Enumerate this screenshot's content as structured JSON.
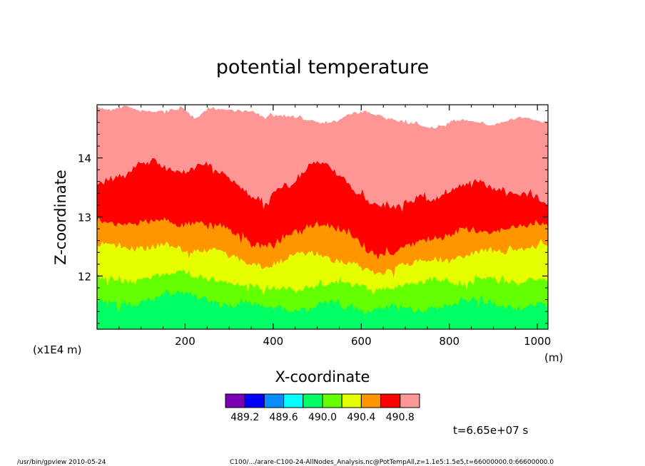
{
  "chart_data": {
    "type": "heatmap",
    "title": "potential temperature",
    "xlabel": "X-coordinate",
    "ylabel": "Z-coordinate",
    "x_unit": "(m)",
    "y_unit": "(x1E4 m)",
    "xlim": [
      0,
      1024
    ],
    "ylim": [
      11.1,
      14.9
    ],
    "x_ticks": [
      200,
      400,
      600,
      800,
      1000
    ],
    "y_ticks": [
      12,
      13,
      14
    ],
    "x_tick_labels": [
      "200",
      "400",
      "600",
      "800",
      "1000"
    ],
    "y_tick_labels": [
      "12",
      "13",
      "14"
    ],
    "grid": false,
    "contour_levels": [
      489.0,
      489.2,
      489.4,
      489.6,
      489.8,
      490.0,
      490.2,
      490.4,
      490.6,
      490.8,
      491.0
    ],
    "legend_labels": [
      "489.2",
      "489.6",
      "490.0",
      "490.4",
      "490.8"
    ],
    "colorbar_colors": [
      "#7a00b4",
      "#0000ff",
      "#0a8cff",
      "#00ffff",
      "#00ff64",
      "#64ff00",
      "#e6ff00",
      "#ff9600",
      "#ff0000",
      "#ff9696"
    ],
    "above_range_color": "#ffffff",
    "bands": [
      {
        "level": "490.8",
        "color": "#ff9696",
        "top_z": [
          14.85,
          14.82,
          14.88,
          14.8,
          14.78,
          14.8,
          14.85,
          14.65,
          14.85,
          14.82,
          14.8,
          14.78,
          14.7,
          14.72,
          14.68,
          14.65,
          14.6,
          14.62,
          14.75,
          14.78,
          14.72,
          14.65,
          14.6,
          14.55,
          14.5,
          14.6,
          14.65,
          14.62,
          14.55,
          14.62,
          14.68,
          14.65,
          14.6
        ]
      },
      {
        "level": "490.6",
        "color": "#ff0000",
        "top_z": [
          13.55,
          13.65,
          13.7,
          13.9,
          13.95,
          13.8,
          13.75,
          13.85,
          13.9,
          13.7,
          13.55,
          13.35,
          13.25,
          13.5,
          13.55,
          13.85,
          13.95,
          13.75,
          13.5,
          13.3,
          13.2,
          13.15,
          13.25,
          13.35,
          13.3,
          13.45,
          13.55,
          13.6,
          13.5,
          13.45,
          13.4,
          13.35,
          13.25
        ]
      },
      {
        "level": "490.4",
        "color": "#ff9600",
        "top_z": [
          12.95,
          12.9,
          12.85,
          12.9,
          12.95,
          12.95,
          12.85,
          12.9,
          12.9,
          12.85,
          12.7,
          12.55,
          12.5,
          12.6,
          12.75,
          12.85,
          12.9,
          12.8,
          12.7,
          12.45,
          12.35,
          12.4,
          12.5,
          12.6,
          12.65,
          12.7,
          12.8,
          12.75,
          12.75,
          12.8,
          12.85,
          12.9,
          12.9
        ]
      },
      {
        "level": "490.2",
        "color": "#e6ff00",
        "top_z": [
          12.55,
          12.55,
          12.5,
          12.45,
          12.5,
          12.55,
          12.45,
          12.4,
          12.45,
          12.4,
          12.3,
          12.2,
          12.15,
          12.25,
          12.35,
          12.4,
          12.35,
          12.25,
          12.2,
          12.1,
          12.05,
          12.1,
          12.2,
          12.25,
          12.3,
          12.25,
          12.35,
          12.4,
          12.45,
          12.4,
          12.45,
          12.5,
          12.55
        ]
      },
      {
        "level": "490.0",
        "color": "#64ff00",
        "top_z": [
          12.0,
          11.95,
          11.9,
          11.9,
          12.0,
          12.05,
          12.1,
          12.0,
          11.95,
          11.9,
          11.85,
          11.85,
          11.8,
          11.8,
          11.75,
          11.8,
          11.85,
          11.9,
          11.85,
          11.8,
          11.75,
          11.8,
          11.85,
          11.9,
          11.95,
          11.9,
          11.85,
          11.95,
          11.95,
          11.9,
          11.85,
          11.95,
          11.95
        ]
      },
      {
        "level": "489.8",
        "color": "#00ff64",
        "top_z": [
          11.6,
          11.55,
          11.5,
          11.55,
          11.6,
          11.7,
          11.75,
          11.65,
          11.6,
          11.5,
          11.5,
          11.55,
          11.5,
          11.45,
          11.4,
          11.45,
          11.55,
          11.5,
          11.45,
          11.4,
          11.45,
          11.5,
          11.45,
          11.4,
          11.45,
          11.5,
          11.55,
          11.6,
          11.55,
          11.5,
          11.45,
          11.5,
          11.55
        ]
      }
    ]
  },
  "annotations": {
    "time_label": "t=6.65e+07 s",
    "footer_left": "/usr/bin/gpview   2010-05-24",
    "footer_right": "C100/.../arare-C100-24-AllNodes_Analysis.nc@PotTempAll,z=1.1e5:1.5e5,t=66000000.0:66600000.0"
  }
}
